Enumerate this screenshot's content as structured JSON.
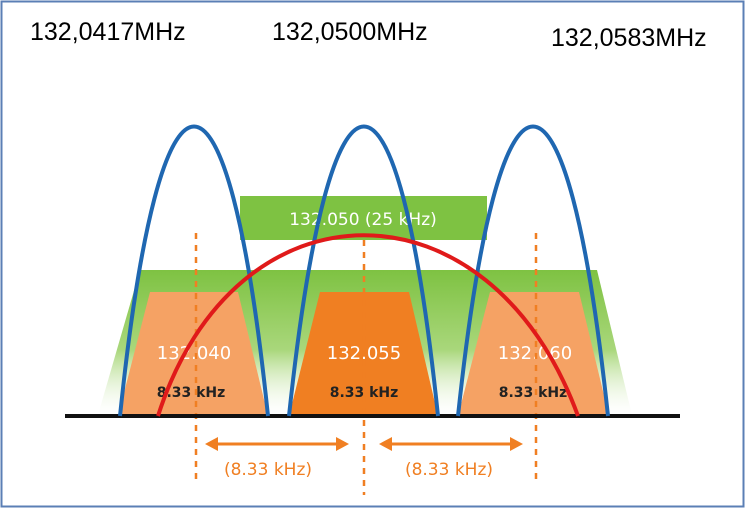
{
  "top_frequencies": [
    "132,0417MHz",
    "132,0500MHz",
    "132,0583MHz"
  ],
  "wide_channel": {
    "label": "132.050 (25 kHz)"
  },
  "narrow_channels": [
    {
      "label": "132.040",
      "bandwidth": "8.33 kHz"
    },
    {
      "label": "132.055",
      "bandwidth": "8.33 kHz"
    },
    {
      "label": "132.060",
      "bandwidth": "8.33 kHz"
    }
  ],
  "spacings": [
    "(8.33 kHz)",
    "(8.33 kHz)"
  ],
  "colors": {
    "border": "#5b7fb5",
    "wide_green": "#7ec242",
    "narrow_orange_light": "#f5a264",
    "narrow_orange_dark": "#f07f22",
    "blue_curve": "#1f67b1",
    "red_curve": "#e01a1a",
    "baseline": "#111111"
  }
}
